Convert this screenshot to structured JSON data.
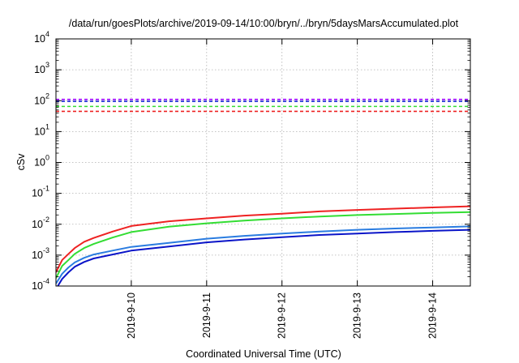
{
  "chart_data": {
    "type": "line",
    "title": "/data/run/goesPlots/archive/2019-09-14/10:00/bryn/../bryn/5daysMarsAccumulated.plot",
    "xlabel": "Coordinated Universal Time (UTC)",
    "ylabel": "cSv",
    "y_scale": "log",
    "ylim": [
      0.0001,
      10000
    ],
    "y_ticks": [
      {
        "base": "10",
        "exp": "-4",
        "value": 0.0001
      },
      {
        "base": "10",
        "exp": "-3",
        "value": 0.001
      },
      {
        "base": "10",
        "exp": "-2",
        "value": 0.01
      },
      {
        "base": "10",
        "exp": "-1",
        "value": 0.1
      },
      {
        "base": "10",
        "exp": "0",
        "value": 1
      },
      {
        "base": "10",
        "exp": "1",
        "value": 10
      },
      {
        "base": "10",
        "exp": "2",
        "value": 100
      },
      {
        "base": "10",
        "exp": "3",
        "value": 1000
      },
      {
        "base": "10",
        "exp": "4",
        "value": 10000
      }
    ],
    "xlim": [
      "2019-09-09 00:00",
      "2019-09-14 12:00"
    ],
    "x_ticks": [
      "2019-9-10",
      "2019-9-11",
      "2019-9-12",
      "2019-9-13",
      "2019-9-14"
    ],
    "grid": true,
    "dashed_lines": [
      {
        "color": "#9900ff",
        "value": 110
      },
      {
        "color": "#1a2bd6",
        "value": 95
      },
      {
        "color": "#33dd33",
        "value": 65
      },
      {
        "color": "#ee2222",
        "value": 45
      }
    ],
    "series": [
      {
        "color": "#ee2222",
        "x": [
          "2019-09-09 00:00",
          "2019-09-09 02:00",
          "2019-09-09 04:00",
          "2019-09-09 06:00",
          "2019-09-09 09:00",
          "2019-09-09 12:00",
          "2019-09-09 18:00",
          "2019-09-10 00:00",
          "2019-09-10 12:00",
          "2019-09-11 00:00",
          "2019-09-11 12:00",
          "2019-09-12 00:00",
          "2019-09-12 12:00",
          "2019-09-13 00:00",
          "2019-09-13 12:00",
          "2019-09-14 00:00",
          "2019-09-14 12:00"
        ],
        "values": [
          0.00028,
          0.0007,
          0.0011,
          0.0017,
          0.0027,
          0.0036,
          0.0058,
          0.0088,
          0.0125,
          0.0155,
          0.019,
          0.022,
          0.026,
          0.029,
          0.032,
          0.035,
          0.038
        ]
      },
      {
        "color": "#33dd33",
        "x": [
          "2019-09-09 00:00",
          "2019-09-09 02:00",
          "2019-09-09 04:00",
          "2019-09-09 06:00",
          "2019-09-09 09:00",
          "2019-09-09 12:00",
          "2019-09-09 18:00",
          "2019-09-10 00:00",
          "2019-09-10 12:00",
          "2019-09-11 00:00",
          "2019-09-11 12:00",
          "2019-09-12 00:00",
          "2019-09-12 12:00",
          "2019-09-13 00:00",
          "2019-09-13 12:00",
          "2019-09-14 00:00",
          "2019-09-14 12:00"
        ],
        "values": [
          0.00018,
          0.00045,
          0.0007,
          0.0011,
          0.0017,
          0.0023,
          0.0037,
          0.0056,
          0.0083,
          0.0107,
          0.0131,
          0.0155,
          0.0178,
          0.0198,
          0.0215,
          0.0232,
          0.0248
        ]
      },
      {
        "color": "#2a7ce0",
        "x": [
          "2019-09-09 00:00",
          "2019-09-09 02:00",
          "2019-09-09 04:00",
          "2019-09-09 06:00",
          "2019-09-09 09:00",
          "2019-09-09 12:00",
          "2019-09-09 18:00",
          "2019-09-10 00:00",
          "2019-09-10 12:00",
          "2019-09-11 00:00",
          "2019-09-11 12:00",
          "2019-09-12 00:00",
          "2019-09-12 12:00",
          "2019-09-13 00:00",
          "2019-09-13 12:00",
          "2019-09-14 00:00",
          "2019-09-14 12:00"
        ],
        "values": [
          0.00012,
          0.00025,
          0.0004,
          0.00058,
          0.00082,
          0.00105,
          0.0014,
          0.00185,
          0.0025,
          0.0034,
          0.0042,
          0.005,
          0.0058,
          0.0066,
          0.0073,
          0.0079,
          0.0085
        ]
      },
      {
        "color": "#0a14c8",
        "x": [
          "2019-09-09 00:00",
          "2019-09-09 02:00",
          "2019-09-09 04:00",
          "2019-09-09 06:00",
          "2019-09-09 09:00",
          "2019-09-09 12:00",
          "2019-09-09 18:00",
          "2019-09-10 00:00",
          "2019-09-10 12:00",
          "2019-09-11 00:00",
          "2019-09-11 12:00",
          "2019-09-12 00:00",
          "2019-09-12 12:00",
          "2019-09-13 00:00",
          "2019-09-13 12:00",
          "2019-09-14 00:00",
          "2019-09-14 12:00"
        ],
        "values": [
          8e-05,
          0.00017,
          0.00028,
          0.00042,
          0.0006,
          0.00078,
          0.00105,
          0.0014,
          0.0019,
          0.0026,
          0.0032,
          0.0038,
          0.0045,
          0.005,
          0.0056,
          0.0061,
          0.0066
        ]
      }
    ]
  }
}
